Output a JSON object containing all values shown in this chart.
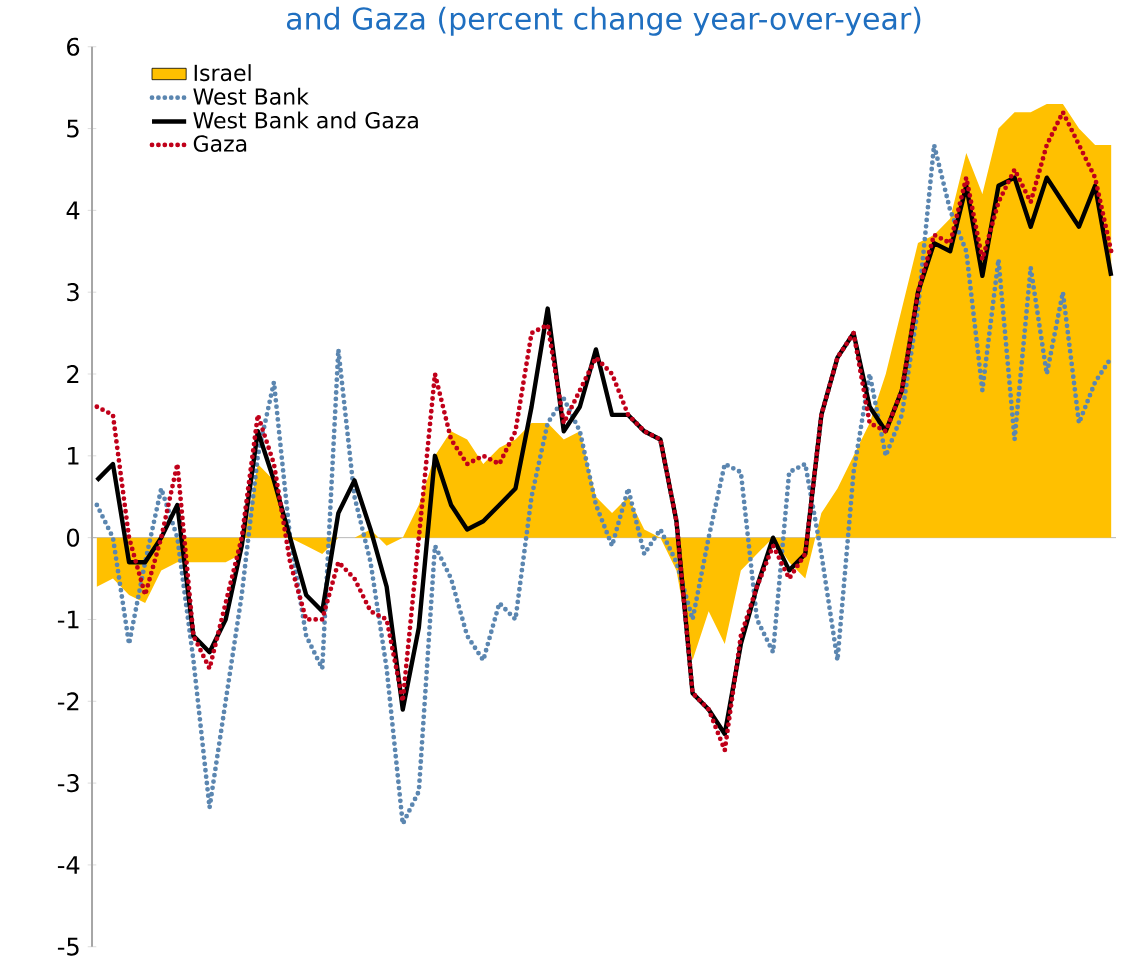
{
  "chart_data": {
    "type": "line",
    "title": "and Gaza (percent change year-over-year)",
    "categories": [
      null,
      null,
      null,
      null,
      null,
      null,
      null,
      null,
      null,
      null,
      null,
      null,
      null,
      null,
      null,
      null,
      null,
      null,
      null,
      null,
      null,
      null,
      null,
      null,
      null,
      null,
      null,
      null,
      null,
      null,
      null,
      null,
      null,
      null,
      null,
      null,
      null,
      null,
      null,
      null,
      null,
      null,
      null,
      null,
      null,
      null,
      null,
      null,
      null,
      null,
      null,
      null,
      null,
      null,
      null,
      null,
      null,
      null,
      null,
      null,
      null,
      null,
      null,
      null
    ],
    "ylim": [
      -5,
      6
    ],
    "yticks": [
      -5,
      -4,
      -3,
      -2,
      -1,
      0,
      1,
      2,
      3,
      4,
      5,
      6
    ],
    "legend": "top left",
    "series": [
      {
        "name": "Israel",
        "type": "area",
        "color": "#ffc000",
        "values": [
          -0.6,
          -0.5,
          -0.7,
          -0.8,
          -0.4,
          -0.3,
          -0.3,
          -0.3,
          -0.3,
          -0.2,
          0.9,
          0.7,
          0.0,
          -0.1,
          -0.2,
          0.0,
          0.0,
          0.1,
          -0.1,
          0.0,
          0.4,
          1.0,
          1.3,
          1.2,
          0.9,
          1.1,
          1.2,
          1.4,
          1.4,
          1.2,
          1.3,
          0.5,
          0.3,
          0.5,
          0.1,
          0.0,
          -0.4,
          -1.5,
          -0.9,
          -1.3,
          -0.4,
          -0.2,
          0.0,
          -0.3,
          -0.5,
          0.3,
          0.6,
          1.0,
          1.4,
          2.0,
          2.8,
          3.6,
          3.7,
          3.9,
          4.7,
          4.2,
          5.0,
          5.2,
          5.2,
          5.3,
          5.3,
          5.0,
          4.8,
          4.8
        ]
      },
      {
        "name": "West Bank",
        "line_style": "dotted",
        "color": "#5b86b0",
        "values": [
          0.4,
          0.0,
          -1.3,
          -0.3,
          0.6,
          0.0,
          -1.5,
          -3.3,
          -2.0,
          -0.7,
          1.0,
          1.9,
          0.0,
          -1.2,
          -1.6,
          2.3,
          0.5,
          -0.3,
          -1.6,
          -3.5,
          -3.1,
          -0.1,
          -0.5,
          -1.2,
          -1.5,
          -0.8,
          -1.0,
          0.5,
          1.4,
          1.7,
          1.3,
          0.4,
          -0.1,
          0.6,
          -0.2,
          0.1,
          -0.3,
          -1.0,
          0.0,
          0.9,
          0.8,
          -1.0,
          -1.4,
          0.8,
          0.9,
          -0.2,
          -1.5,
          0.8,
          2.0,
          1.0,
          1.5,
          2.8,
          4.8,
          4.0,
          3.5,
          1.8,
          3.4,
          1.2,
          3.3,
          2.0,
          3.0,
          1.4,
          1.9,
          2.2
        ]
      },
      {
        "name": "West Bank and Gaza",
        "line_style": "solid",
        "color": "#000000",
        "values": [
          0.7,
          0.9,
          -0.3,
          -0.3,
          0.0,
          0.4,
          -1.2,
          -1.4,
          -1.0,
          -0.1,
          1.3,
          0.7,
          0.0,
          -0.7,
          -0.9,
          0.3,
          0.7,
          0.1,
          -0.6,
          -2.1,
          -1.1,
          1.0,
          0.4,
          0.1,
          0.2,
          0.4,
          0.6,
          1.6,
          2.8,
          1.3,
          1.6,
          2.3,
          1.5,
          1.5,
          1.3,
          1.2,
          0.2,
          -1.9,
          -2.1,
          -2.4,
          -1.3,
          -0.6,
          0.0,
          -0.4,
          -0.2,
          1.5,
          2.2,
          2.5,
          1.6,
          1.3,
          1.8,
          3.0,
          3.6,
          3.5,
          4.3,
          3.2,
          4.3,
          4.4,
          3.8,
          4.4,
          4.1,
          3.8,
          4.3,
          3.2
        ]
      },
      {
        "name": "Gaza",
        "line_style": "dotted",
        "color": "#c0001a",
        "values": [
          1.6,
          1.5,
          0.0,
          -0.7,
          0.0,
          0.9,
          -1.2,
          -1.6,
          -0.8,
          0.0,
          1.5,
          0.9,
          -0.3,
          -1.0,
          -1.0,
          -0.3,
          -0.5,
          -0.9,
          -1.0,
          -2.0,
          0.0,
          2.0,
          1.2,
          0.9,
          1.0,
          0.9,
          1.3,
          2.5,
          2.6,
          1.4,
          1.8,
          2.2,
          2.0,
          1.5,
          1.3,
          1.2,
          0.2,
          -1.9,
          -2.1,
          -2.6,
          -1.2,
          -0.6,
          -0.1,
          -0.5,
          -0.2,
          1.5,
          2.2,
          2.5,
          1.4,
          1.3,
          1.8,
          3.0,
          3.7,
          3.6,
          4.4,
          3.4,
          4.1,
          4.5,
          4.1,
          4.8,
          5.2,
          4.8,
          4.4,
          3.5
        ]
      }
    ]
  }
}
